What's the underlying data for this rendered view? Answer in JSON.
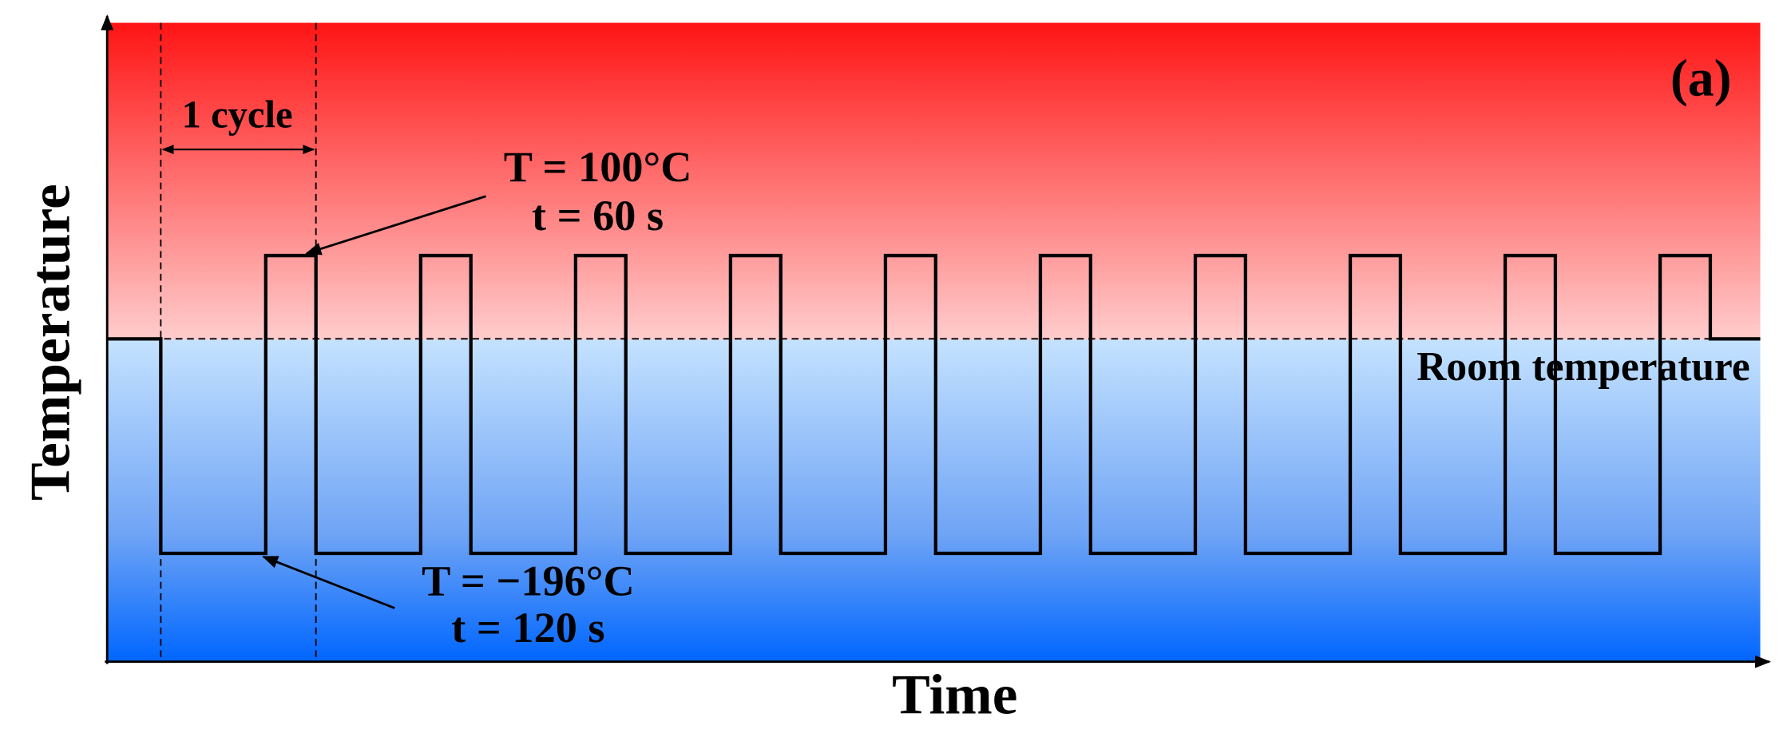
{
  "panel_label": "(a)",
  "y_axis_label": "Temperature",
  "x_axis_label": "Time",
  "cycle_label": "1 cycle",
  "high_annotation": {
    "temperature": "T = 100°C",
    "time": "t = 60 s"
  },
  "low_annotation": {
    "temperature": "T = −196°C",
    "time": "t = 120 s"
  },
  "room_label": "Room temperature"
}
